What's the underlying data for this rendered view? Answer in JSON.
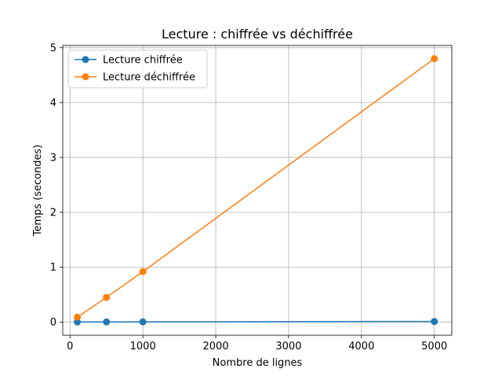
{
  "chart_data": {
    "type": "line",
    "title": "Lecture : chiffrée vs déchiffrée",
    "xlabel": "Nombre de lignes",
    "ylabel": "Temps (secondes)",
    "xlim": [
      -100,
      5240
    ],
    "ylim": [
      -0.24,
      5.04
    ],
    "xticks": [
      0,
      1000,
      2000,
      3000,
      4000,
      5000
    ],
    "yticks": [
      0,
      1,
      2,
      3,
      4,
      5
    ],
    "grid": true,
    "legend_position": "top-left",
    "x": [
      100,
      500,
      1000,
      5000
    ],
    "series": [
      {
        "name": "Lecture chiffrée",
        "color": "#1f77b4",
        "values": [
          0.002,
          0.003,
          0.004,
          0.01
        ]
      },
      {
        "name": "Lecture déchiffrée",
        "color": "#ff7f0e",
        "values": [
          0.09,
          0.45,
          0.92,
          4.8
        ]
      }
    ]
  }
}
